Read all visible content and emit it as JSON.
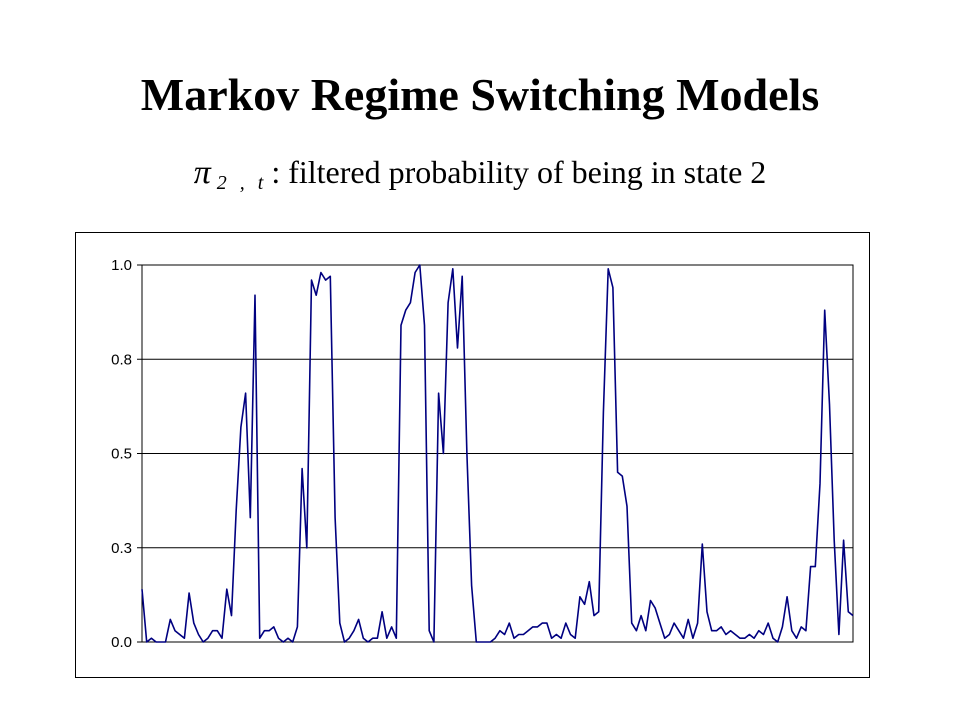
{
  "slide": {
    "title": "Markov Regime Switching Models",
    "subtitle_symbol": "π",
    "subtitle_subscript": "2 , t",
    "subtitle_text": ": filtered probability of being in state 2"
  },
  "chart_data": {
    "type": "line",
    "title": "",
    "xlabel": "",
    "ylabel": "",
    "ylim": [
      0,
      1
    ],
    "y_ticks": [
      {
        "value": 0.0,
        "label": "0.0"
      },
      {
        "value": 0.25,
        "label": "0.3"
      },
      {
        "value": 0.5,
        "label": "0.5"
      },
      {
        "value": 0.75,
        "label": "0.8"
      },
      {
        "value": 1.0,
        "label": "1.0"
      }
    ],
    "grid": "horizontal",
    "legend": "none",
    "line_color": "#000080",
    "series": [
      {
        "values": [
          0.14,
          0.0,
          0.01,
          0.0,
          0.0,
          0.0,
          0.06,
          0.03,
          0.02,
          0.01,
          0.13,
          0.05,
          0.02,
          0.0,
          0.01,
          0.03,
          0.03,
          0.01,
          0.14,
          0.07,
          0.35,
          0.57,
          0.66,
          0.33,
          0.92,
          0.01,
          0.03,
          0.03,
          0.04,
          0.01,
          0.0,
          0.01,
          0.0,
          0.04,
          0.46,
          0.25,
          0.96,
          0.92,
          0.98,
          0.96,
          0.97,
          0.33,
          0.05,
          0.0,
          0.01,
          0.03,
          0.06,
          0.01,
          0.0,
          0.01,
          0.01,
          0.08,
          0.01,
          0.04,
          0.01,
          0.84,
          0.88,
          0.9,
          0.98,
          1.0,
          0.84,
          0.03,
          0.0,
          0.66,
          0.5,
          0.9,
          0.99,
          0.78,
          0.97,
          0.5,
          0.15,
          0.0,
          0.0,
          0.0,
          0.0,
          0.01,
          0.03,
          0.02,
          0.05,
          0.01,
          0.02,
          0.02,
          0.03,
          0.04,
          0.04,
          0.05,
          0.05,
          0.01,
          0.02,
          0.01,
          0.05,
          0.02,
          0.01,
          0.12,
          0.1,
          0.16,
          0.07,
          0.08,
          0.61,
          0.99,
          0.94,
          0.45,
          0.44,
          0.36,
          0.05,
          0.03,
          0.07,
          0.03,
          0.11,
          0.09,
          0.05,
          0.01,
          0.02,
          0.05,
          0.03,
          0.01,
          0.06,
          0.01,
          0.05,
          0.26,
          0.08,
          0.03,
          0.03,
          0.04,
          0.02,
          0.03,
          0.02,
          0.01,
          0.01,
          0.02,
          0.01,
          0.03,
          0.02,
          0.05,
          0.01,
          0.0,
          0.04,
          0.12,
          0.03,
          0.01,
          0.04,
          0.03,
          0.2,
          0.2,
          0.42,
          0.88,
          0.63,
          0.27,
          0.02,
          0.27,
          0.08,
          0.07
        ]
      }
    ]
  }
}
